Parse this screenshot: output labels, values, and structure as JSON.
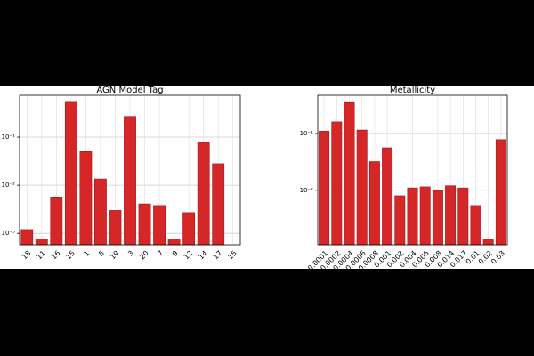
{
  "chart_data": [
    {
      "type": "bar",
      "title": "AGN Model Tag",
      "log_y": true,
      "grid": true,
      "color": "#d62728",
      "categories": [
        "18",
        "11",
        "16",
        "15",
        "1",
        "5",
        "19",
        "3",
        "20",
        "7",
        "9",
        "12",
        "14",
        "17",
        "15"
      ],
      "values": [
        0.0012,
        0.00077,
        0.0057,
        0.53,
        0.05,
        0.0135,
        0.003,
        0.27,
        0.0041,
        0.0038,
        0.00077,
        0.0027,
        0.077,
        0.028,
        null
      ],
      "ylim": [
        0.00058,
        0.74
      ],
      "yticks": [
        {
          "value": 0.001,
          "label": "10⁻³"
        },
        {
          "value": 0.01,
          "label": "10⁻²"
        },
        {
          "value": 0.1,
          "label": "10⁻¹"
        }
      ]
    },
    {
      "type": "bar",
      "title": "Metallicity",
      "log_y": true,
      "grid": true,
      "color": "#d62728",
      "categories": [
        "0.0001",
        "0.0002",
        "0.0004",
        "0.0006",
        "0.0008",
        "0.001",
        "0.002",
        "0.004",
        "0.006",
        "0.008",
        "0.014",
        "0.017",
        "0.01",
        "0.02",
        "0.03"
      ],
      "values": [
        0.11,
        0.16,
        0.35,
        0.115,
        0.032,
        0.056,
        0.008,
        0.011,
        0.0115,
        0.0098,
        0.012,
        0.011,
        0.0054,
        0.0014,
        0.078
      ],
      "ylim": [
        0.0011,
        0.47
      ],
      "yticks": [
        {
          "value": 0.01,
          "label": "10⁻²"
        },
        {
          "value": 0.1,
          "label": "10⁻¹"
        }
      ]
    }
  ]
}
